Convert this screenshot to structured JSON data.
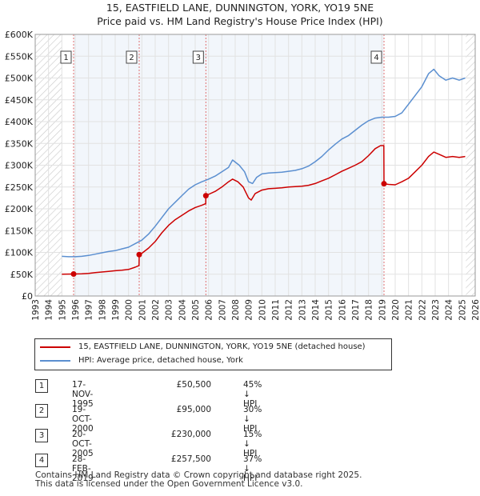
{
  "title_line1": "15, EASTFIELD LANE, DUNNINGTON, YORK, YO19 5NE",
  "title_line2": "Price paid vs. HM Land Registry's House Price Index (HPI)",
  "chart_data": {
    "type": "line",
    "xlim": [
      1993,
      2026
    ],
    "ylim": [
      0,
      600000
    ],
    "x_ticks": [
      1993,
      1994,
      1995,
      1996,
      1997,
      1998,
      1999,
      2000,
      2001,
      2002,
      2003,
      2004,
      2005,
      2006,
      2007,
      2008,
      2009,
      2010,
      2011,
      2012,
      2013,
      2014,
      2015,
      2016,
      2017,
      2018,
      2019,
      2020,
      2021,
      2022,
      2023,
      2024,
      2025,
      2026
    ],
    "y_ticks": [
      0,
      50000,
      100000,
      150000,
      200000,
      250000,
      300000,
      350000,
      400000,
      450000,
      500000,
      550000,
      600000
    ],
    "y_tick_labels": [
      "£0",
      "£50K",
      "£100K",
      "£150K",
      "£200K",
      "£250K",
      "£300K",
      "£350K",
      "£400K",
      "£450K",
      "£500K",
      "£550K",
      "£600K"
    ],
    "hatched_regions": [
      [
        1993,
        1995.0
      ],
      [
        2025.3,
        2026
      ]
    ],
    "colors": {
      "property": "#cc0000",
      "hpi": "#5b8fd0",
      "sale_line": "#e07070",
      "shade": "#e8eef8"
    },
    "series": [
      {
        "name": "15, EASTFIELD LANE, DUNNINGTON, YORK, YO19 5NE (detached house)",
        "color": "#cc0000",
        "points": [
          [
            1995.0,
            50000
          ],
          [
            1995.88,
            50500
          ],
          [
            1996.5,
            51000
          ],
          [
            1997.0,
            52000
          ],
          [
            1997.5,
            53500
          ],
          [
            1998.0,
            55000
          ],
          [
            1998.5,
            56500
          ],
          [
            1999.0,
            58000
          ],
          [
            1999.5,
            59000
          ],
          [
            2000.0,
            61000
          ],
          [
            2000.5,
            66000
          ],
          [
            2000.79,
            70000
          ],
          [
            2000.8,
            95000
          ],
          [
            2001.0,
            98000
          ],
          [
            2001.5,
            110000
          ],
          [
            2002.0,
            125000
          ],
          [
            2002.5,
            145000
          ],
          [
            2003.0,
            162000
          ],
          [
            2003.5,
            175000
          ],
          [
            2004.0,
            185000
          ],
          [
            2004.5,
            195000
          ],
          [
            2005.0,
            203000
          ],
          [
            2005.5,
            208000
          ],
          [
            2005.79,
            212000
          ],
          [
            2005.8,
            230000
          ],
          [
            2006.0,
            233000
          ],
          [
            2006.5,
            240000
          ],
          [
            2007.0,
            250000
          ],
          [
            2007.5,
            262000
          ],
          [
            2007.8,
            268000
          ],
          [
            2008.2,
            262000
          ],
          [
            2008.6,
            250000
          ],
          [
            2009.0,
            225000
          ],
          [
            2009.2,
            220000
          ],
          [
            2009.5,
            235000
          ],
          [
            2010.0,
            243000
          ],
          [
            2010.5,
            246000
          ],
          [
            2011.0,
            247000
          ],
          [
            2011.5,
            248000
          ],
          [
            2012.0,
            250000
          ],
          [
            2012.5,
            251000
          ],
          [
            2013.0,
            252000
          ],
          [
            2013.5,
            254000
          ],
          [
            2014.0,
            258000
          ],
          [
            2014.5,
            264000
          ],
          [
            2015.0,
            270000
          ],
          [
            2015.5,
            278000
          ],
          [
            2016.0,
            286000
          ],
          [
            2016.5,
            293000
          ],
          [
            2017.0,
            300000
          ],
          [
            2017.5,
            308000
          ],
          [
            2018.0,
            322000
          ],
          [
            2018.5,
            338000
          ],
          [
            2018.9,
            345000
          ],
          [
            2019.15,
            345000
          ],
          [
            2019.16,
            257500
          ],
          [
            2019.5,
            256000
          ],
          [
            2020.0,
            255000
          ],
          [
            2020.5,
            262000
          ],
          [
            2021.0,
            270000
          ],
          [
            2021.5,
            285000
          ],
          [
            2022.0,
            300000
          ],
          [
            2022.5,
            320000
          ],
          [
            2022.9,
            330000
          ],
          [
            2023.3,
            325000
          ],
          [
            2023.8,
            318000
          ],
          [
            2024.3,
            320000
          ],
          [
            2024.8,
            318000
          ],
          [
            2025.25,
            320000
          ]
        ]
      },
      {
        "name": "HPI: Average price, detached house, York",
        "color": "#5b8fd0",
        "points": [
          [
            1995.0,
            91000
          ],
          [
            1995.5,
            90000
          ],
          [
            1996.0,
            90000
          ],
          [
            1996.5,
            91000
          ],
          [
            1997.0,
            93000
          ],
          [
            1997.5,
            96000
          ],
          [
            1998.0,
            99000
          ],
          [
            1998.5,
            102000
          ],
          [
            1999.0,
            104000
          ],
          [
            1999.5,
            108000
          ],
          [
            2000.0,
            112000
          ],
          [
            2000.5,
            120000
          ],
          [
            2001.0,
            128000
          ],
          [
            2001.5,
            142000
          ],
          [
            2002.0,
            160000
          ],
          [
            2002.5,
            180000
          ],
          [
            2003.0,
            200000
          ],
          [
            2003.5,
            215000
          ],
          [
            2004.0,
            230000
          ],
          [
            2004.5,
            245000
          ],
          [
            2005.0,
            255000
          ],
          [
            2005.5,
            262000
          ],
          [
            2006.0,
            268000
          ],
          [
            2006.5,
            275000
          ],
          [
            2007.0,
            285000
          ],
          [
            2007.5,
            295000
          ],
          [
            2007.8,
            312000
          ],
          [
            2008.3,
            300000
          ],
          [
            2008.7,
            285000
          ],
          [
            2009.0,
            262000
          ],
          [
            2009.3,
            258000
          ],
          [
            2009.6,
            272000
          ],
          [
            2010.0,
            280000
          ],
          [
            2010.5,
            282000
          ],
          [
            2011.0,
            283000
          ],
          [
            2011.5,
            284000
          ],
          [
            2012.0,
            286000
          ],
          [
            2012.5,
            288000
          ],
          [
            2013.0,
            292000
          ],
          [
            2013.5,
            298000
          ],
          [
            2014.0,
            308000
          ],
          [
            2014.5,
            320000
          ],
          [
            2015.0,
            335000
          ],
          [
            2015.5,
            348000
          ],
          [
            2016.0,
            360000
          ],
          [
            2016.5,
            368000
          ],
          [
            2017.0,
            380000
          ],
          [
            2017.5,
            392000
          ],
          [
            2018.0,
            402000
          ],
          [
            2018.5,
            408000
          ],
          [
            2019.0,
            410000
          ],
          [
            2019.5,
            410000
          ],
          [
            2020.0,
            412000
          ],
          [
            2020.5,
            420000
          ],
          [
            2021.0,
            440000
          ],
          [
            2021.5,
            460000
          ],
          [
            2022.0,
            480000
          ],
          [
            2022.5,
            510000
          ],
          [
            2022.9,
            520000
          ],
          [
            2023.3,
            505000
          ],
          [
            2023.8,
            495000
          ],
          [
            2024.3,
            500000
          ],
          [
            2024.8,
            495000
          ],
          [
            2025.25,
            500000
          ]
        ]
      }
    ],
    "sales": [
      {
        "label": "1",
        "date": "17-NOV-1995",
        "year": 1995.88,
        "price": 50500,
        "price_text": "£50,500",
        "hpi_text": "45% ↓ HPI"
      },
      {
        "label": "2",
        "date": "19-OCT-2000",
        "year": 2000.8,
        "price": 95000,
        "price_text": "£95,000",
        "hpi_text": "30% ↓ HPI"
      },
      {
        "label": "3",
        "date": "20-OCT-2005",
        "year": 2005.8,
        "price": 230000,
        "price_text": "£230,000",
        "hpi_text": "15% ↓ HPI"
      },
      {
        "label": "4",
        "date": "28-FEB-2019",
        "year": 2019.16,
        "price": 257500,
        "price_text": "£257,500",
        "hpi_text": "37% ↓ HPI"
      }
    ]
  },
  "legend": {
    "property_label": "15, EASTFIELD LANE, DUNNINGTON, YORK, YO19 5NE (detached house)",
    "hpi_label": "HPI: Average price, detached house, York"
  },
  "footer": {
    "line1": "Contains HM Land Registry data © Crown copyright and database right 2025.",
    "line2": "This data is licensed under the Open Government Licence v3.0."
  }
}
